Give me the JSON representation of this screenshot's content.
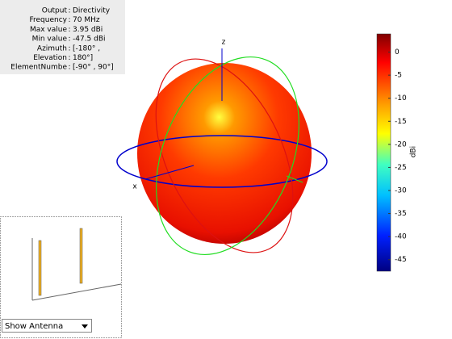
{
  "info": {
    "rows": [
      {
        "key": "Output",
        "value": "Directivity"
      },
      {
        "key": "Frequency",
        "value": "70 MHz"
      },
      {
        "key": "Max value",
        "value": "3.95 dBi"
      },
      {
        "key": "Min value",
        "value": "-47.5 dBi"
      },
      {
        "key": "Azimuth",
        "value": "[-180° ,"
      },
      {
        "key": "Elevation",
        "value": "180°]"
      },
      {
        "key": "ElementNumbe",
        "value": "[-90° , 90°]"
      }
    ]
  },
  "axes_labels": {
    "z": "z",
    "x": "x"
  },
  "colorbar": {
    "label": "dBi",
    "lim": [
      -47.5,
      3.95
    ],
    "ticks": [
      0,
      -5,
      -10,
      -15,
      -20,
      -25,
      -30,
      -35,
      -40,
      -45
    ]
  },
  "dropdown": {
    "label": "Show Antenna"
  }
}
